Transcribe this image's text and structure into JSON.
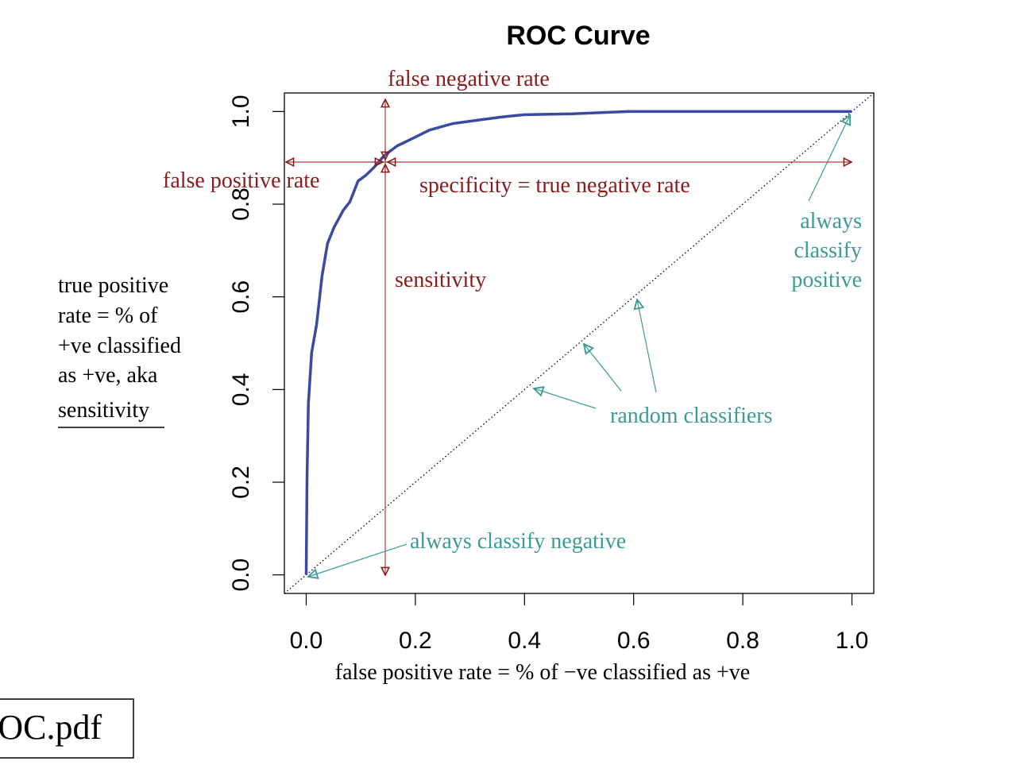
{
  "chart_data": {
    "type": "line",
    "title": "ROC Curve",
    "x_label": "false positive rate = % of −ve classified as +ve",
    "y_label_lines": [
      "true positive",
      "rate = % of",
      "+ve classified",
      "as +ve, aka",
      "sensitivity"
    ],
    "x": [
      0,
      0.0015,
      0.004,
      0.01,
      0.019,
      0.029,
      0.039,
      0.051,
      0.068,
      0.08,
      0.095,
      0.109,
      0.124,
      0.143,
      0.167,
      0.197,
      0.226,
      0.269,
      0.313,
      0.357,
      0.4,
      0.488,
      0.59,
      1
    ],
    "values": [
      0,
      0.21,
      0.37,
      0.48,
      0.54,
      0.645,
      0.715,
      0.75,
      0.787,
      0.805,
      0.85,
      0.862,
      0.879,
      0.905,
      0.926,
      0.943,
      0.96,
      0.974,
      0.981,
      0.988,
      0.993,
      0.995,
      1,
      1
    ],
    "color": "#3a4aa0",
    "xlim": [
      -0.04,
      1.04
    ],
    "ylim": [
      -0.04,
      1.04
    ],
    "xticks": [
      {
        "value": 0,
        "label": "0.0"
      },
      0.2,
      0.4,
      0.6,
      0.8,
      {
        "value": 1,
        "label": "1.0"
      }
    ],
    "yticks": [
      {
        "value": 0,
        "label": "0.0"
      },
      0.2,
      0.4,
      0.6,
      0.8,
      {
        "value": 1,
        "label": "1.0"
      }
    ],
    "annotations": {
      "false_negative_rate": "false negative rate",
      "false_positive_rate": "false positive rate",
      "specificity": "specificity = true negative rate",
      "sensitivity": "sensitivity",
      "always_positive": [
        "always",
        "classify",
        "positive"
      ],
      "random": "random classifiers",
      "always_negative": "always classify negative"
    }
  },
  "file_label": "ROC.pdf"
}
